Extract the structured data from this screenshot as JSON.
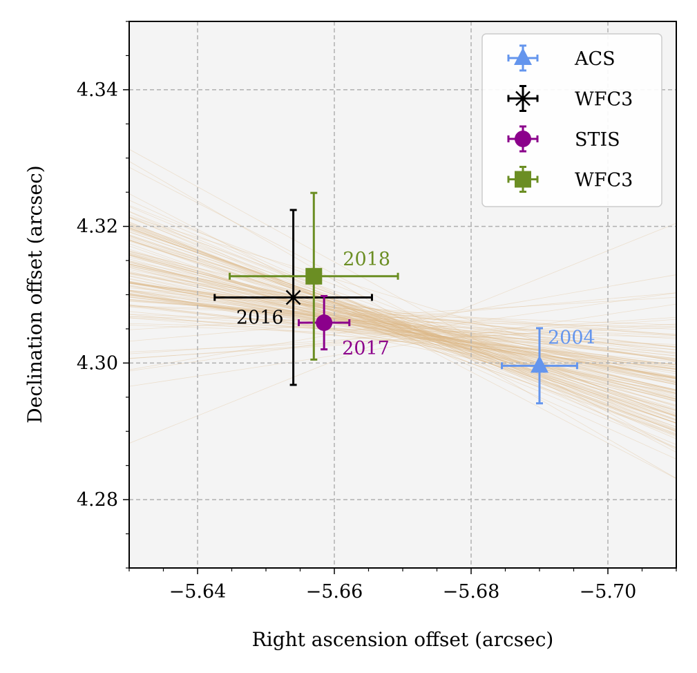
{
  "chart_data": {
    "type": "scatter",
    "title": "",
    "xlabel": "Right ascension offset (arcsec)",
    "ylabel": "Declination offset (arcsec)",
    "xlim": [
      -5.63,
      -5.71
    ],
    "ylim": [
      4.27,
      4.35
    ],
    "x_inverted": true,
    "grid": true,
    "xticks": [
      -5.64,
      -5.66,
      -5.68,
      -5.7
    ],
    "xtick_labels": [
      "−5.64",
      "−5.66",
      "−5.68",
      "−5.70"
    ],
    "yticks": [
      4.28,
      4.3,
      4.32,
      4.34
    ],
    "ytick_labels": [
      "4.28",
      "4.30",
      "4.32",
      "4.34"
    ],
    "legend_position": "top-right",
    "series": [
      {
        "name": "ACS",
        "marker": "triangle",
        "color": "#6495ed",
        "x": -5.69,
        "y": 4.2996,
        "xerr": 0.0055,
        "yerr": 0.0055,
        "label": "2004"
      },
      {
        "name": "WFC3",
        "marker": "x",
        "color": "#000000",
        "x": -5.654,
        "y": 4.3096,
        "xerr": 0.0115,
        "yerr": 0.0128,
        "label": "2016"
      },
      {
        "name": "STIS",
        "marker": "circle",
        "color": "#8b008b",
        "x": -5.6585,
        "y": 4.3059,
        "xerr": 0.0037,
        "yerr": 0.0039,
        "label": "2017"
      },
      {
        "name": "WFC3",
        "marker": "square",
        "color": "#6b8e23",
        "x": -5.657,
        "y": 4.3127,
        "xerr": 0.0123,
        "yerr": 0.0122,
        "label": "2018"
      }
    ],
    "trajectory_band": {
      "color": "#deb887",
      "description": "posterior trajectory samples"
    }
  }
}
